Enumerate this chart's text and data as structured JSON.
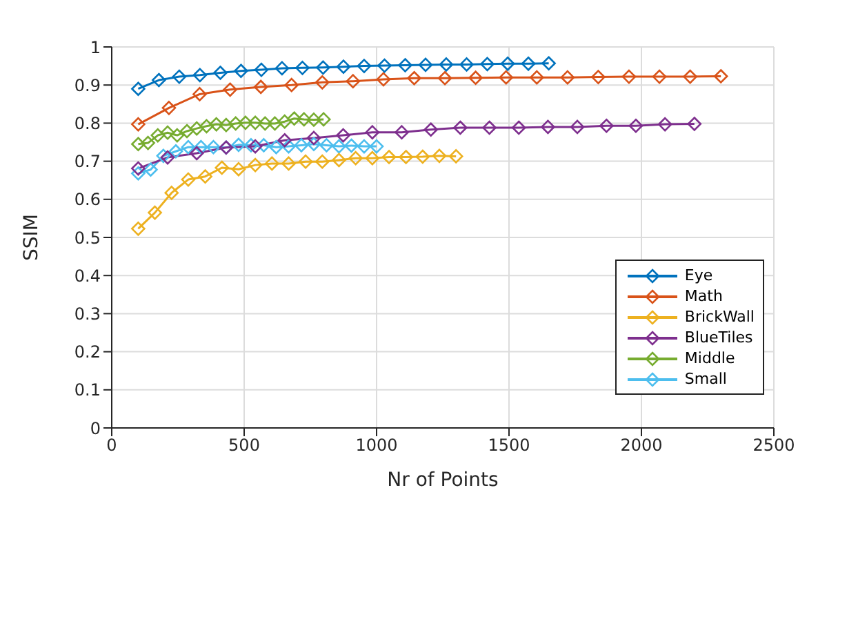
{
  "chart_data": {
    "type": "line",
    "xlabel": "Nr of Points",
    "ylabel": "SSIM",
    "xlim": [
      0,
      2500
    ],
    "xticks": [
      0,
      500,
      1000,
      1500,
      2000,
      2500
    ],
    "ylim": [
      0,
      1
    ],
    "yticks": [
      0,
      0.1,
      0.2,
      0.3,
      0.4,
      0.5,
      0.6,
      0.7,
      0.8,
      0.9,
      1
    ],
    "grid": true,
    "legend": "right",
    "marker": "diamond",
    "line_style": "solid",
    "series": [
      {
        "name": "Eye",
        "color": "#0072bd",
        "x": [
          100,
          178,
          255,
          333,
          410,
          488,
          565,
          643,
          720,
          798,
          875,
          953,
          1030,
          1108,
          1185,
          1263,
          1340,
          1418,
          1495,
          1573,
          1650
        ],
        "values": [
          0.89,
          0.913,
          0.922,
          0.926,
          0.932,
          0.937,
          0.94,
          0.944,
          0.945,
          0.946,
          0.948,
          0.95,
          0.951,
          0.952,
          0.953,
          0.954,
          0.954,
          0.955,
          0.956,
          0.956,
          0.957
        ]
      },
      {
        "name": "Math",
        "color": "#d95319",
        "x": [
          100,
          216,
          332,
          447,
          563,
          679,
          795,
          911,
          1026,
          1142,
          1258,
          1374,
          1489,
          1605,
          1721,
          1837,
          1953,
          2068,
          2184,
          2300
        ],
        "values": [
          0.797,
          0.84,
          0.876,
          0.888,
          0.895,
          0.9,
          0.907,
          0.91,
          0.915,
          0.918,
          0.918,
          0.919,
          0.92,
          0.92,
          0.92,
          0.921,
          0.922,
          0.922,
          0.922,
          0.923
        ]
      },
      {
        "name": "BrickWall",
        "color": "#edb120",
        "x": [
          100,
          163,
          226,
          289,
          353,
          416,
          479,
          542,
          605,
          668,
          732,
          795,
          858,
          921,
          984,
          1047,
          1111,
          1174,
          1237,
          1300
        ],
        "values": [
          0.523,
          0.565,
          0.617,
          0.652,
          0.66,
          0.683,
          0.679,
          0.69,
          0.694,
          0.694,
          0.699,
          0.699,
          0.703,
          0.708,
          0.708,
          0.711,
          0.711,
          0.712,
          0.714,
          0.713
        ]
      },
      {
        "name": "BlueTiles",
        "color": "#7e2f8e",
        "x": [
          100,
          211,
          321,
          432,
          542,
          653,
          763,
          874,
          984,
          1095,
          1205,
          1316,
          1426,
          1537,
          1647,
          1758,
          1868,
          1979,
          2089,
          2200
        ],
        "values": [
          0.681,
          0.71,
          0.721,
          0.736,
          0.739,
          0.755,
          0.761,
          0.768,
          0.776,
          0.776,
          0.783,
          0.788,
          0.788,
          0.788,
          0.79,
          0.79,
          0.793,
          0.793,
          0.797,
          0.798
        ]
      },
      {
        "name": "Middle",
        "color": "#77ac30",
        "x": [
          100,
          137,
          174,
          211,
          247,
          284,
          321,
          358,
          395,
          432,
          468,
          505,
          542,
          579,
          616,
          653,
          689,
          726,
          763,
          800
        ],
        "values": [
          0.745,
          0.748,
          0.768,
          0.775,
          0.768,
          0.779,
          0.786,
          0.792,
          0.797,
          0.795,
          0.799,
          0.801,
          0.801,
          0.799,
          0.799,
          0.804,
          0.812,
          0.81,
          0.809,
          0.81
        ]
      },
      {
        "name": "Small",
        "color": "#4dbeee",
        "x": [
          100,
          147,
          195,
          242,
          289,
          337,
          384,
          432,
          479,
          526,
          574,
          621,
          668,
          716,
          763,
          811,
          858,
          905,
          953,
          1000
        ],
        "values": [
          0.668,
          0.678,
          0.714,
          0.726,
          0.737,
          0.737,
          0.737,
          0.736,
          0.743,
          0.742,
          0.742,
          0.737,
          0.739,
          0.742,
          0.745,
          0.742,
          0.739,
          0.741,
          0.739,
          0.739
        ]
      }
    ]
  }
}
